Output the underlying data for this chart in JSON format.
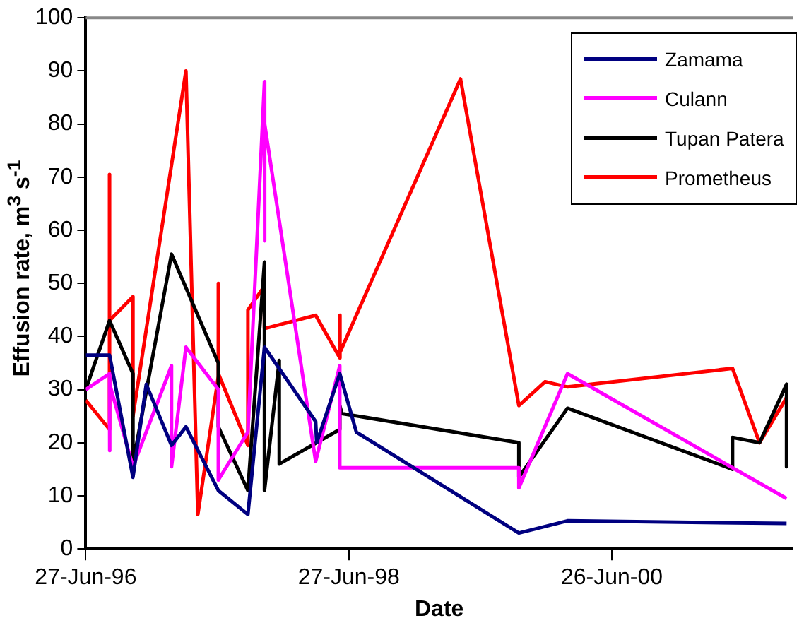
{
  "chart_data": {
    "type": "line",
    "xlabel": "Date",
    "ylabel": "Effusion rate, m$^{3}$ s$^{-1}$",
    "xlim": [
      "1996-06-27",
      "2001-11-10"
    ],
    "xticks": [
      {
        "value": "1996-06-27",
        "label": "27-Jun-96"
      },
      {
        "value": "1998-06-27",
        "label": "27-Jun-98"
      },
      {
        "value": "2000-06-26",
        "label": "26-Jun-00"
      }
    ],
    "ylim": [
      0,
      100
    ],
    "yticks": [
      0,
      10,
      20,
      30,
      40,
      50,
      60,
      70,
      80,
      90,
      100
    ],
    "grid": false,
    "legend": "top right",
    "marker": "none",
    "line_style": "solid",
    "series": [
      {
        "name": "Zamama",
        "color": "#000080",
        "x": [
          "1996-06-27",
          "1996-09-01",
          "1996-11-05",
          "1996-12-12",
          "1997-02-20",
          "1997-04-01",
          "1997-06-30",
          "1997-09-20",
          "1997-11-05",
          "1998-03-27",
          "1998-03-30",
          "1998-06-02",
          "1998-07-18",
          "1999-10-12",
          "2000-02-24",
          "2001-10-24"
        ],
        "values": [
          36.5,
          36.5,
          13.5,
          31,
          19.5,
          23,
          11,
          6.5,
          38,
          24,
          20,
          33,
          22,
          3,
          5.3,
          4.8
        ]
      },
      {
        "name": "Culann",
        "color": "#ff00ff",
        "x": [
          "1996-06-27",
          "1996-09-01",
          "1996-09-01",
          "1996-09-02",
          "1996-11-05",
          "1997-02-20",
          "1997-02-20",
          "1997-04-01",
          "1997-06-30",
          "1997-06-30",
          "1997-09-20",
          "1997-11-05",
          "1997-11-05",
          "1997-11-06",
          "1998-03-27",
          "1998-06-02",
          "1998-06-02",
          "1999-10-12",
          "1999-10-12",
          "2000-02-24",
          "2001-10-24"
        ],
        "values": [
          30,
          33,
          18.5,
          31,
          15.5,
          34.5,
          15.5,
          38,
          30,
          13,
          22,
          88,
          58,
          80,
          16.5,
          34.5,
          15.3,
          15.3,
          11.5,
          33,
          9.5
        ]
      },
      {
        "name": "Tupan Patera",
        "color": "#000000",
        "x": [
          "1996-06-27",
          "1996-09-01",
          "1996-11-05",
          "1996-11-05",
          "1997-02-20",
          "1997-06-30",
          "1997-06-30",
          "1997-09-20",
          "1997-11-05",
          "1997-11-05",
          "1997-12-16",
          "1997-12-16",
          "1998-06-02",
          "1998-06-02",
          "1998-06-08",
          "1999-10-12",
          "1999-10-12",
          "2000-02-24",
          "2001-05-27",
          "2001-05-27",
          "2001-08-10",
          "2001-10-24",
          "2001-10-24"
        ],
        "values": [
          30,
          43,
          33,
          16,
          55.5,
          35,
          23,
          11,
          54,
          11,
          35.5,
          16,
          22.5,
          27,
          25.5,
          20,
          13.5,
          26.5,
          15,
          21,
          20,
          31,
          15.5
        ]
      },
      {
        "name": "Prometheus",
        "color": "#ff0000",
        "x": [
          "1996-06-27",
          "1996-09-01",
          "1996-09-01",
          "1996-09-01",
          "1996-11-05",
          "1996-11-05",
          "1997-04-01",
          "1997-05-04",
          "1997-06-30",
          "1997-06-30",
          "1997-06-30",
          "1997-09-20",
          "1997-09-20",
          "1997-11-05",
          "1997-11-05",
          "1998-03-27",
          "1998-06-02",
          "1998-06-02",
          "1998-06-03",
          "1999-05-03",
          "1999-10-12",
          "1999-12-24",
          "2000-02-24",
          "2001-05-27",
          "2001-08-10",
          "2001-10-24"
        ],
        "values": [
          28,
          22.5,
          70.5,
          43,
          47.5,
          25,
          90,
          6.5,
          32.5,
          50,
          33,
          19.5,
          45,
          49.5,
          41.5,
          44,
          36,
          44,
          37,
          88.5,
          27,
          31.5,
          30.5,
          34,
          20,
          28.5
        ]
      }
    ]
  }
}
